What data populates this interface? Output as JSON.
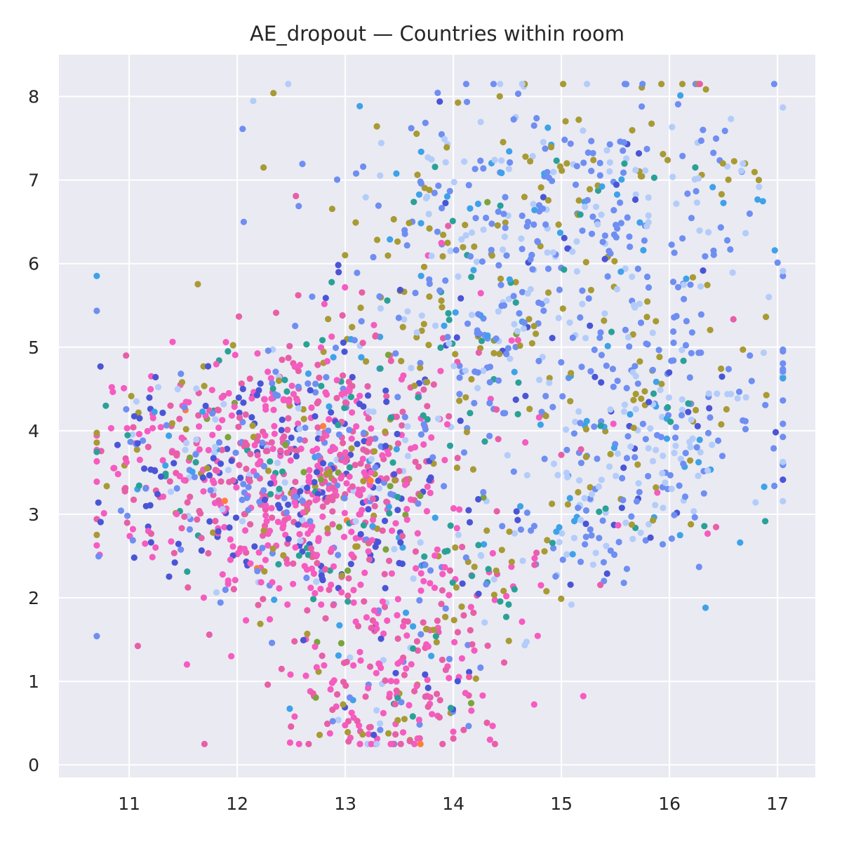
{
  "chart_data": {
    "type": "scatter",
    "title": "AE_dropout — Countries within room",
    "xlabel": "",
    "ylabel": "",
    "xlim": [
      10.35,
      17.35
    ],
    "ylim": [
      -0.15,
      8.5
    ],
    "x_ticks": [
      "11",
      "12",
      "13",
      "14",
      "15",
      "16",
      "17"
    ],
    "y_ticks": [
      "0",
      "1",
      "2",
      "3",
      "4",
      "5",
      "6",
      "7",
      "8"
    ],
    "grid": true,
    "legend": "none",
    "colors": {
      "background": "#eaeaf2",
      "grid": "#ffffff",
      "text": "#262626"
    },
    "palette": [
      "#f65bc0",
      "#e85fa8",
      "#4a55d6",
      "#6f8ef2",
      "#b3ccfa",
      "#a89a34",
      "#2aa197",
      "#3ea2e8",
      "#7ba43a",
      "#ff7f3a"
    ],
    "clusters": [
      {
        "cx": 12.7,
        "cy": 3.5,
        "sx": 0.65,
        "sy": 0.85,
        "n": 900,
        "palette_weights": [
          6,
          5,
          3,
          2,
          1,
          1.2,
          0.8,
          0.4,
          0.2,
          0.05
        ]
      },
      {
        "cx": 13.6,
        "cy": 1.3,
        "sx": 0.55,
        "sy": 0.65,
        "n": 190,
        "palette_weights": [
          6,
          5,
          1,
          1,
          1,
          1.2,
          0.7,
          0.4,
          0.2,
          0
        ]
      },
      {
        "cx": 13.2,
        "cy": 0.6,
        "sx": 0.45,
        "sy": 0.25,
        "n": 60,
        "palette_weights": [
          6,
          5,
          1,
          1,
          1,
          1,
          0.5,
          0.3,
          0,
          0.1
        ]
      },
      {
        "cx": 15.0,
        "cy": 6.6,
        "sx": 1.05,
        "sy": 0.85,
        "n": 420,
        "palette_weights": [
          0.1,
          0.1,
          0.6,
          6,
          3,
          2.5,
          0.7,
          1,
          0.1,
          0
        ]
      },
      {
        "cx": 15.9,
        "cy": 4.4,
        "sx": 0.7,
        "sy": 0.75,
        "n": 260,
        "palette_weights": [
          0.2,
          0.1,
          0.6,
          6,
          3,
          2,
          0.6,
          1,
          0.1,
          0
        ]
      },
      {
        "cx": 14.2,
        "cy": 5.0,
        "sx": 0.6,
        "sy": 0.7,
        "n": 150,
        "palette_weights": [
          0.6,
          0.4,
          1,
          4,
          2,
          2,
          1.5,
          0.6,
          0.3,
          0
        ]
      },
      {
        "cx": 15.3,
        "cy": 3.0,
        "sx": 0.5,
        "sy": 0.45,
        "n": 110,
        "palette_weights": [
          0.2,
          0.2,
          0.6,
          5,
          3,
          1,
          0.5,
          1,
          0,
          0
        ]
      },
      {
        "cx": 11.2,
        "cy": 3.6,
        "sx": 0.35,
        "sy": 0.7,
        "n": 140,
        "palette_weights": [
          5,
          4,
          3,
          2,
          1,
          1,
          1.2,
          0.4,
          0.3,
          0
        ]
      },
      {
        "cx": 14.3,
        "cy": 2.3,
        "sx": 0.35,
        "sy": 0.35,
        "n": 60,
        "palette_weights": [
          3,
          2,
          0.6,
          1,
          0.6,
          2,
          1.5,
          0.3,
          0.3,
          0
        ]
      }
    ]
  }
}
